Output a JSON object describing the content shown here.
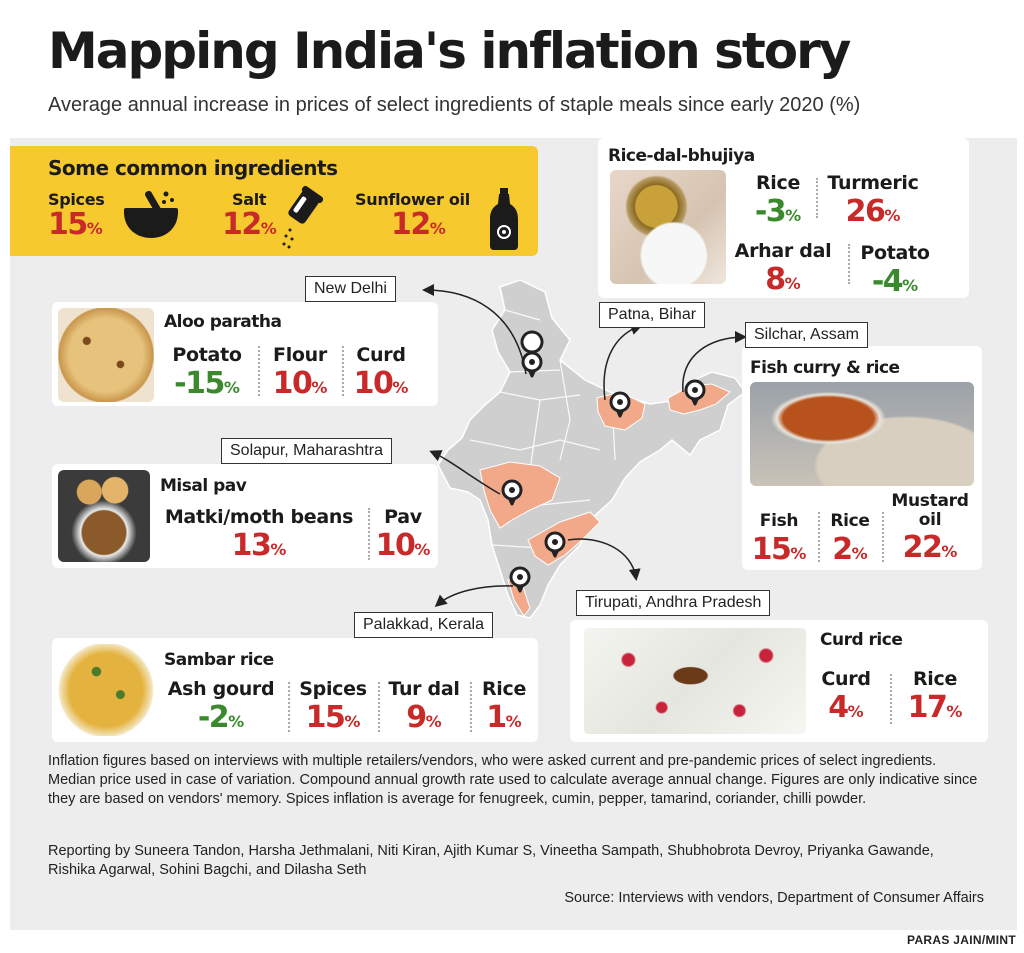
{
  "title": "Mapping India's inflation story",
  "subtitle": "Average annual increase in prices of select ingredients of staple meals since early 2020 (%)",
  "common": {
    "title": "Some common ingredients",
    "items": [
      {
        "name": "Spices",
        "value": "15",
        "icon": "mortar-pestle-icon"
      },
      {
        "name": "Salt",
        "value": "12",
        "icon": "salt-shaker-icon"
      },
      {
        "name": "Sunflower oil",
        "value": "12",
        "icon": "oil-bottle-icon"
      }
    ]
  },
  "unit": "%",
  "locations": {
    "new_delhi": "New Delhi",
    "patna": "Patna, Bihar",
    "silchar": "Silchar, Assam",
    "solapur": "Solapur, Maharashtra",
    "tirupati": "Tirupati, Andhra Pradesh",
    "palakkad": "Palakkad, Kerala"
  },
  "dishes": {
    "aloo_paratha": {
      "title": "Aloo paratha",
      "items": [
        {
          "name": "Potato",
          "value": "-15"
        },
        {
          "name": "Flour",
          "value": "10"
        },
        {
          "name": "Curd",
          "value": "10"
        }
      ]
    },
    "misal_pav": {
      "title": "Misal pav",
      "items": [
        {
          "name": "Matki/moth beans",
          "value": "13"
        },
        {
          "name": "Pav",
          "value": "10"
        }
      ]
    },
    "sambar_rice": {
      "title": "Sambar rice",
      "items": [
        {
          "name": "Ash gourd",
          "value": "-2"
        },
        {
          "name": "Spices",
          "value": "15"
        },
        {
          "name": "Tur dal",
          "value": "9"
        },
        {
          "name": "Rice",
          "value": "1"
        }
      ]
    },
    "rice_dal_bhujiya": {
      "title": "Rice-dal-bhujiya",
      "items": [
        {
          "name": "Rice",
          "value": "-3"
        },
        {
          "name": "Turmeric",
          "value": "26"
        },
        {
          "name": "Arhar dal",
          "value": "8"
        },
        {
          "name": "Potato",
          "value": "-4"
        }
      ]
    },
    "fish_curry_rice": {
      "title": "Fish curry & rice",
      "items": [
        {
          "name": "Fish",
          "value": "15"
        },
        {
          "name": "Rice",
          "value": "2"
        },
        {
          "name": "Mustard oil",
          "value": "22"
        }
      ]
    },
    "curd_rice": {
      "title": "Curd rice",
      "items": [
        {
          "name": "Curd",
          "value": "4"
        },
        {
          "name": "Rice",
          "value": "17"
        }
      ]
    }
  },
  "colors": {
    "positive": "#c82a2a",
    "negative": "#3a8a2d",
    "highlight": "#f6c92f",
    "state_fill": "#f2a98a",
    "map_fill": "#cfcfcf"
  },
  "footnote": "Inflation figures based on interviews with multiple retailers/vendors, who were asked current and pre-pandemic prices of select ingredients. Median price used in case of variation. Compound annual growth rate used to calculate average annual change. Figures are only indicative since they are based on vendors' memory. Spices inflation is average for fenugreek, cumin, pepper, tamarind, coriander, chilli powder.",
  "reporting": "Reporting by Suneera Tandon, Harsha Jethmalani, Niti Kiran, Ajith Kumar S, Vineetha Sampath, Shubhobrota Devroy, Priyanka Gawande, Rishika Agarwal, Sohini Bagchi, and Dilasha Seth",
  "source": "Source: Interviews with vendors, Department of Consumer Affairs",
  "credit": "PARAS JAIN/MINT"
}
